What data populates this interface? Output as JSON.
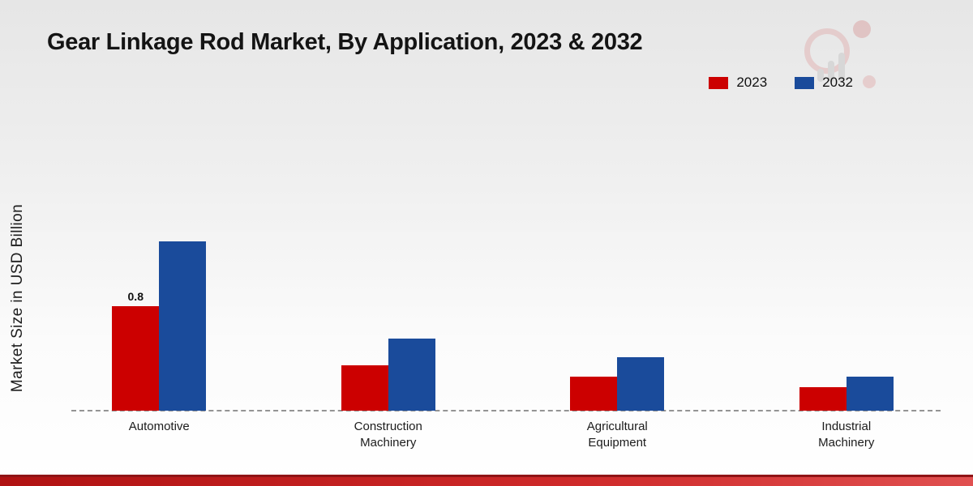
{
  "chart_data": {
    "type": "bar",
    "title": "Gear Linkage Rod Market, By Application, 2023 & 2032",
    "ylabel": "Market Size in USD Billion",
    "xlabel": "",
    "categories": [
      "Automotive",
      "Construction Machinery",
      "Agricultural Equipment",
      "Industrial Machinery"
    ],
    "series": [
      {
        "name": "2023",
        "color": "#cc0000",
        "values": [
          0.8,
          0.35,
          0.26,
          0.18
        ],
        "data_labels": [
          "0.8",
          null,
          null,
          null
        ]
      },
      {
        "name": "2032",
        "color": "#1a4b9b",
        "values": [
          1.3,
          0.55,
          0.41,
          0.26
        ],
        "data_labels": [
          null,
          null,
          null,
          null
        ]
      }
    ],
    "ylim": [
      0,
      1.5
    ],
    "grid": false,
    "legend_position": "top-right",
    "baseline_style": "dashed"
  },
  "footer": {
    "accent_color": "#b01212"
  }
}
